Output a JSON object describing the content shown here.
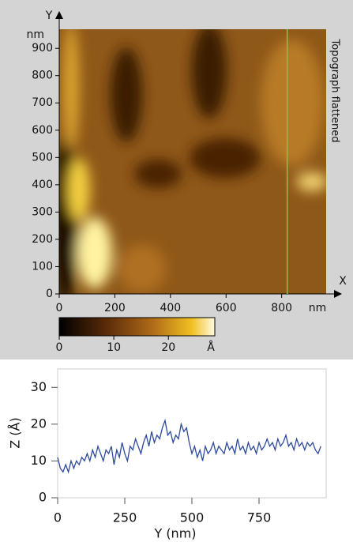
{
  "chart_data": [
    {
      "type": "image",
      "x_axis_label": "X",
      "y_axis_label": "Y",
      "x_unit": "nm",
      "y_unit": "nm",
      "side_label": "Topograph flattened",
      "xlim": [
        0,
        960
      ],
      "ylim": [
        0,
        970
      ],
      "xticks": [
        0,
        200,
        400,
        600,
        800
      ],
      "yticks": [
        0,
        100,
        200,
        300,
        400,
        500,
        600,
        700,
        800,
        900
      ],
      "cursor_x": 820,
      "cursor_color": "#7ec850",
      "colorbar": {
        "lim": [
          0,
          28.5
        ],
        "ticks": [
          0,
          10,
          20
        ],
        "unit": "Å"
      }
    },
    {
      "type": "line",
      "xlabel": "Y (nm)",
      "ylabel": "Z (Å)",
      "color": "#2e4a9e",
      "xlim": [
        0,
        1000
      ],
      "ylim": [
        0,
        35
      ],
      "xticks": [
        0,
        250,
        500,
        750
      ],
      "yticks": [
        0,
        10,
        20,
        30
      ],
      "x": [
        0,
        10,
        20,
        30,
        40,
        50,
        60,
        70,
        80,
        90,
        100,
        110,
        120,
        130,
        140,
        150,
        160,
        170,
        180,
        190,
        200,
        210,
        220,
        230,
        240,
        250,
        260,
        270,
        280,
        290,
        300,
        310,
        320,
        330,
        340,
        350,
        360,
        370,
        380,
        390,
        400,
        410,
        420,
        430,
        440,
        450,
        460,
        470,
        480,
        490,
        500,
        510,
        520,
        530,
        540,
        550,
        560,
        570,
        580,
        590,
        600,
        610,
        620,
        630,
        640,
        650,
        660,
        670,
        680,
        690,
        700,
        710,
        720,
        730,
        740,
        750,
        760,
        770,
        780,
        790,
        800,
        810,
        820,
        830,
        840,
        850,
        860,
        870,
        880,
        890,
        900,
        910,
        920,
        930,
        940,
        950,
        960,
        970,
        980
      ],
      "values": [
        11,
        8,
        7,
        9,
        7,
        10,
        8,
        10,
        9,
        11,
        10,
        12,
        10,
        13,
        11,
        14,
        12,
        10,
        13,
        12,
        14,
        9,
        13,
        11,
        15,
        12,
        10,
        14,
        13,
        16,
        14,
        12,
        15,
        17,
        14,
        18,
        15,
        17,
        16,
        19,
        21,
        17,
        18,
        15,
        17,
        16,
        20,
        18,
        19,
        15,
        12,
        14,
        11,
        13,
        10,
        14,
        12,
        13,
        15,
        12,
        14,
        13,
        12,
        15,
        13,
        14,
        12,
        16,
        13,
        14,
        12,
        15,
        13,
        14,
        12,
        15,
        13,
        14,
        16,
        14,
        15,
        13,
        16,
        14,
        15,
        17,
        14,
        15,
        13,
        16,
        14,
        15,
        13,
        15,
        14,
        15,
        13,
        12,
        14
      ]
    }
  ]
}
